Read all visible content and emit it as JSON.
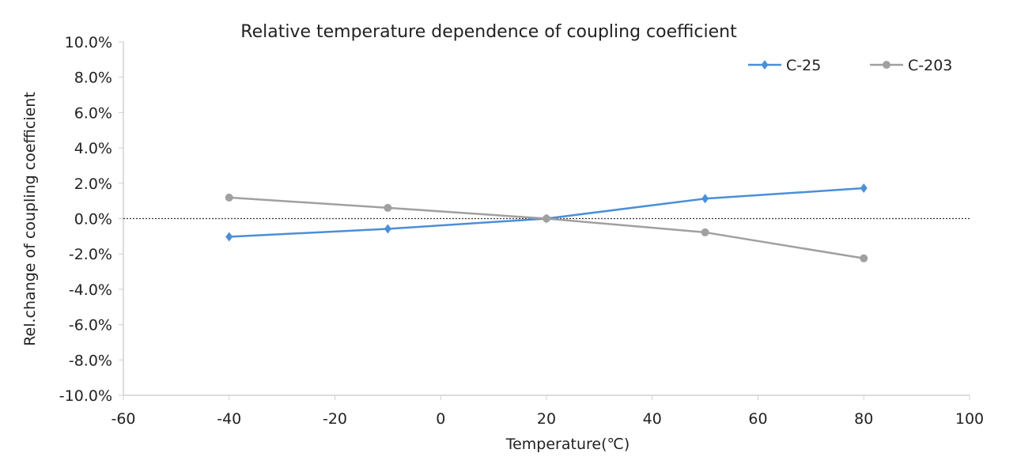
{
  "chart_data": {
    "type": "line",
    "title": "Relative temperature dependence of coupling coefficient",
    "xlabel": "Temperature(℃)",
    "ylabel": "Rel.change of coupling coefficient",
    "xlim": [
      -60,
      100
    ],
    "ylim": [
      -10,
      10
    ],
    "xticks": [
      -60,
      -40,
      -20,
      0,
      20,
      40,
      60,
      80,
      100
    ],
    "yticks": [
      10,
      8,
      6,
      4,
      2,
      0,
      -2,
      -4,
      -6,
      -8,
      -10
    ],
    "ytick_labels": [
      "10.0%",
      "8.0%",
      "6.0%",
      "4.0%",
      "2.0%",
      "0.0%",
      "-2.0%",
      "-4.0%",
      "-6.0%",
      "-8.0%",
      "-10.0%"
    ],
    "grid": false,
    "legend_position": "top-right",
    "x": [
      -40,
      -10,
      20,
      50,
      80
    ],
    "series": [
      {
        "name": "C-25",
        "color": "#4a8fd8",
        "marker": "diamond",
        "values": [
          -1.03,
          -0.58,
          0.0,
          1.13,
          1.72
        ]
      },
      {
        "name": "C-203",
        "color": "#a0a0a0",
        "marker": "circle",
        "values": [
          1.19,
          0.61,
          0.0,
          -0.78,
          -2.25
        ]
      }
    ]
  }
}
